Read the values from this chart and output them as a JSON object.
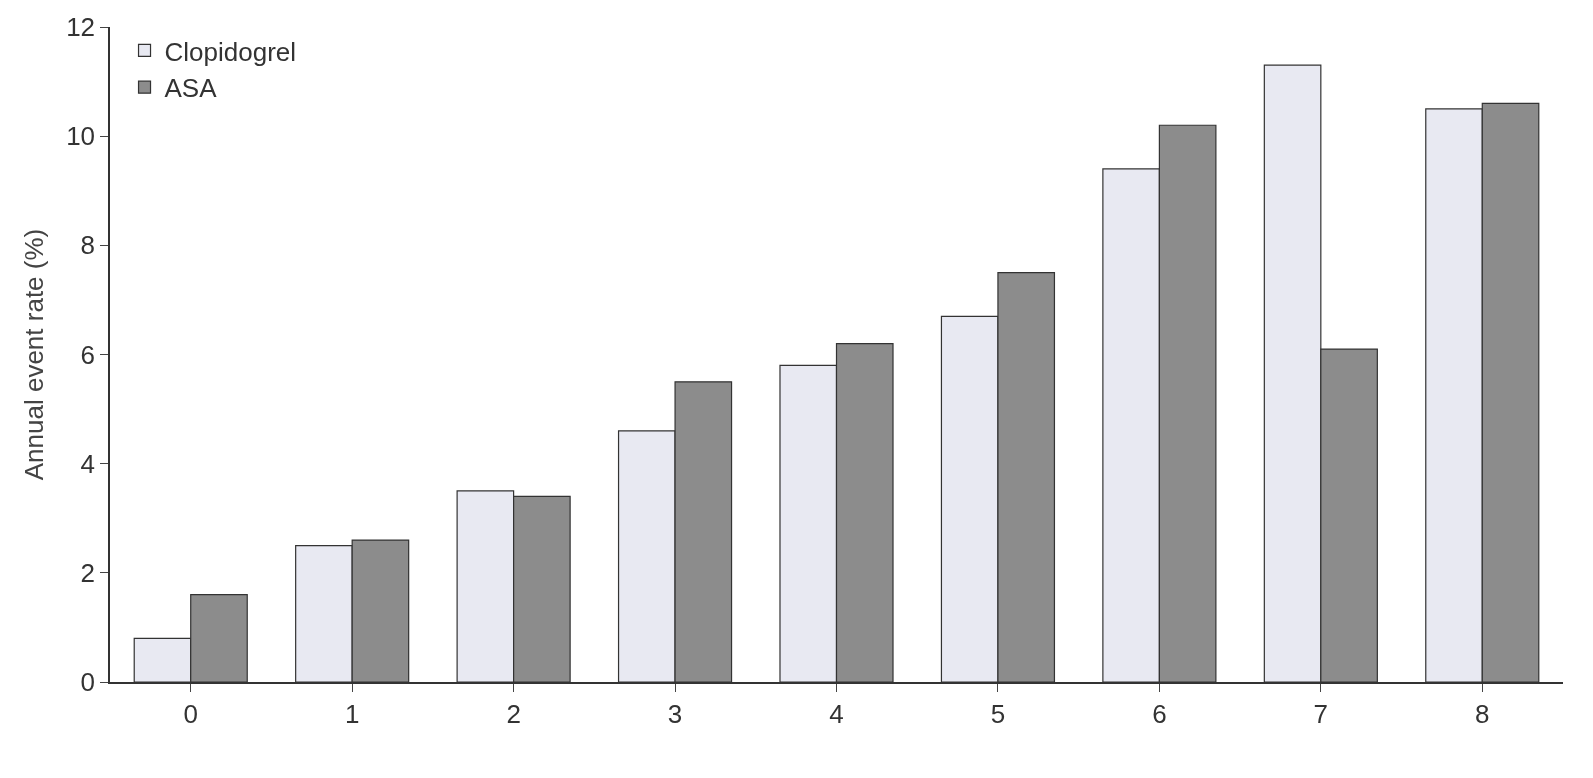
{
  "chart_data": {
    "type": "bar",
    "ylabel": "Annual event rate (%)",
    "categories": [
      "0",
      "1",
      "2",
      "3",
      "4",
      "5",
      "6",
      "7",
      "8"
    ],
    "series": [
      {
        "name": "Clopidogrel",
        "color": "#e8e9f2",
        "values": [
          0.8,
          2.5,
          3.5,
          4.6,
          5.8,
          6.7,
          9.4,
          11.3,
          10.5
        ]
      },
      {
        "name": "ASA",
        "color": "#8c8c8c",
        "values": [
          1.6,
          2.6,
          3.4,
          5.5,
          6.2,
          7.5,
          10.2,
          6.1,
          10.6
        ]
      }
    ],
    "ylim": [
      0,
      12
    ],
    "yticks": [
      0,
      2,
      4,
      6,
      8,
      10,
      12
    ],
    "legend": "top left"
  }
}
